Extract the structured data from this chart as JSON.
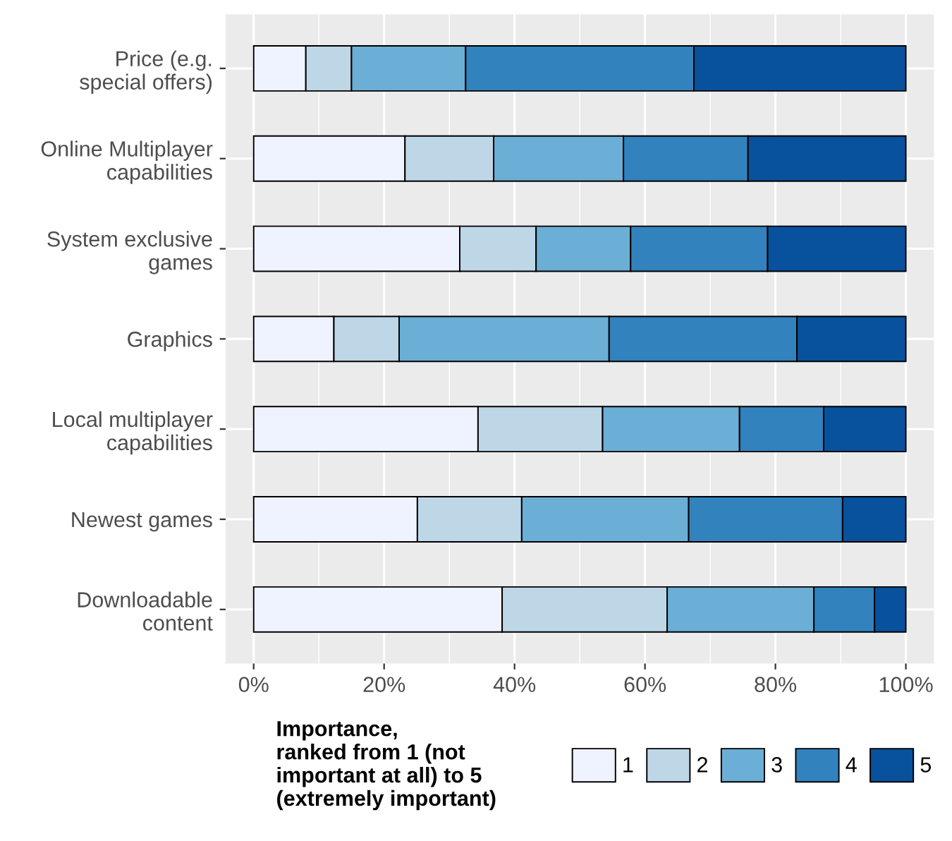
{
  "chart_data": {
    "type": "bar",
    "orientation": "horizontal",
    "stacked": true,
    "categories": [
      "Price (e.g.\nspecial offers)",
      "Online Multiplayer\ncapabilities",
      "System exclusive\ngames",
      "Graphics",
      "Local multiplayer\ncapabilities",
      "Newest games",
      "Downloadable\ncontent"
    ],
    "series": [
      {
        "name": "1",
        "color": "#eff3ff",
        "values": [
          8,
          23.2,
          31.6,
          12.3,
          34.4,
          25.1,
          38.1
        ]
      },
      {
        "name": "2",
        "color": "#bdd7e7",
        "values": [
          7,
          13.6,
          11.7,
          10,
          19.1,
          16,
          25.3
        ]
      },
      {
        "name": "3",
        "color": "#6baed6",
        "values": [
          17.5,
          19.9,
          14.5,
          32.2,
          21,
          25.6,
          22.5
        ]
      },
      {
        "name": "4",
        "color": "#3182bd",
        "values": [
          35,
          19.1,
          21,
          28.8,
          12.9,
          23.6,
          9.3
        ]
      },
      {
        "name": "5",
        "color": "#08519c",
        "values": [
          32.5,
          24.2,
          21.2,
          16.7,
          12.6,
          9.7,
          4.8
        ]
      }
    ],
    "xlim": [
      -4.3,
      104.3
    ],
    "xticks": [
      {
        "value": 0,
        "label": "0%"
      },
      {
        "value": 20,
        "label": "20%"
      },
      {
        "value": 40,
        "label": "40%"
      },
      {
        "value": 60,
        "label": "60%"
      },
      {
        "value": 80,
        "label": "80%"
      },
      {
        "value": 100,
        "label": "100%"
      }
    ],
    "legend_title": "Importance,\nranked from 1 (not\nimportant at all) to 5\n(extremely important)",
    "legend": "bottom",
    "grid": true
  }
}
